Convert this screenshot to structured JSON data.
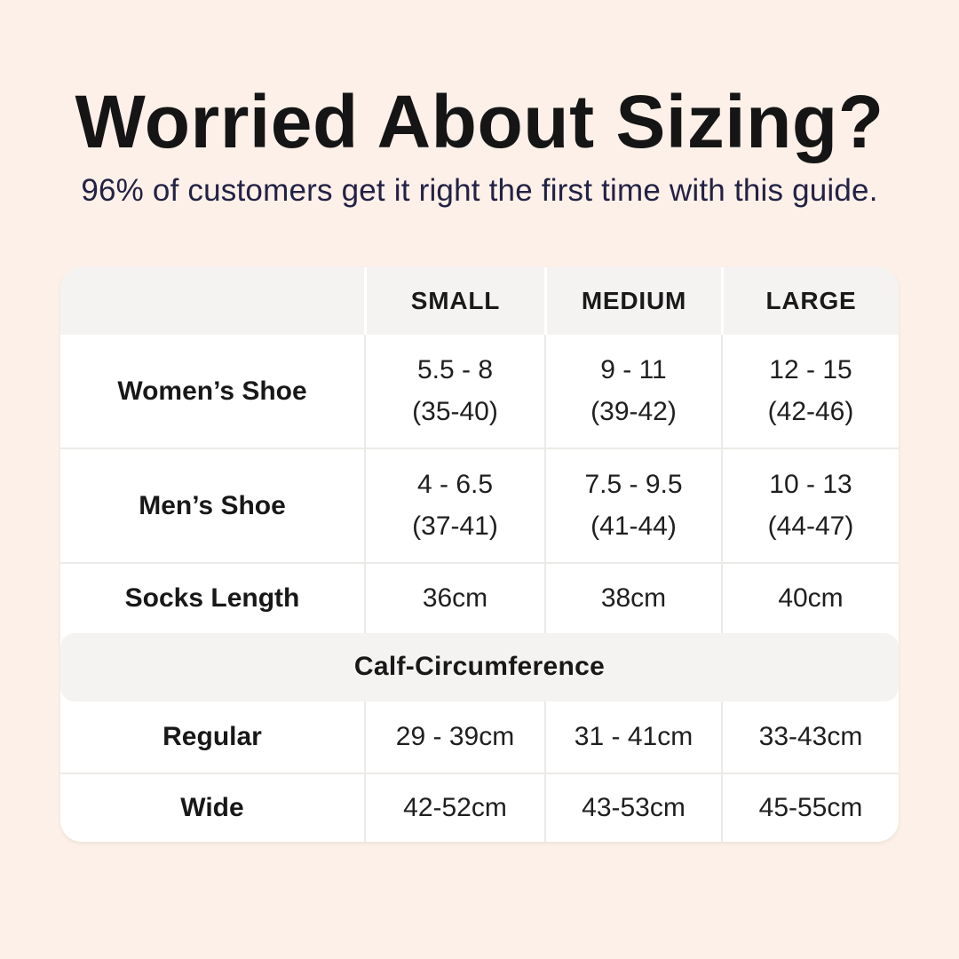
{
  "page": {
    "title": "Worried About Sizing?",
    "subtitle": "96% of customers get it right the first time with this guide."
  },
  "table": {
    "header": {
      "col0": "",
      "col1": "SMALL",
      "col2": "MEDIUM",
      "col3": "LARGE"
    },
    "rows": [
      {
        "label": "Women’s Shoe",
        "small": [
          "5.5 - 8",
          "(35-40)"
        ],
        "medium": [
          "9 - 11",
          "(39-42)"
        ],
        "large": [
          "12 - 15",
          "(42-46)"
        ]
      },
      {
        "label": "Men’s Shoe",
        "small": [
          "4 - 6.5",
          "(37-41)"
        ],
        "medium": [
          "7.5 - 9.5",
          "(41-44)"
        ],
        "large": [
          "10 - 13",
          "(44-47)"
        ]
      },
      {
        "label": "Socks Length",
        "small": "36cm",
        "medium": "38cm",
        "large": "40cm"
      }
    ],
    "calf_header": "Calf-Circumference",
    "calf_rows": [
      {
        "label": "Regular",
        "small": "29 - 39cm",
        "medium": "31 - 41cm",
        "large": "33-43cm"
      },
      {
        "label": "Wide",
        "small": "42-52cm",
        "medium": "43-53cm",
        "large": "45-55cm"
      }
    ]
  },
  "chart_data": {
    "type": "table",
    "title": "Worried About Sizing?",
    "subtitle": "96% of customers get it right the first time with this guide.",
    "columns": [
      "",
      "SMALL",
      "MEDIUM",
      "LARGE"
    ],
    "rows": [
      [
        "Women’s Shoe",
        "5.5 - 8 (35-40)",
        "9 - 11 (39-42)",
        "12 - 15 (42-46)"
      ],
      [
        "Men’s Shoe",
        "4 - 6.5 (37-41)",
        "7.5 - 9.5 (41-44)",
        "10 - 13 (44-47)"
      ],
      [
        "Socks Length",
        "36cm",
        "38cm",
        "40cm"
      ],
      [
        "Calf-Circumference",
        "",
        "",
        ""
      ],
      [
        "Regular",
        "29 - 39cm",
        "31 - 41cm",
        "33-43cm"
      ],
      [
        "Wide",
        "42-52cm",
        "43-53cm",
        "45-55cm"
      ]
    ],
    "section_header_row_index": 3
  },
  "colors": {
    "background": "#fcf0e8",
    "card": "#ffffff",
    "band": "#f4f3f1",
    "divider": "#eceae7",
    "title_text": "#151515",
    "subtitle_text": "#232144",
    "body_text": "#1f1f1f"
  }
}
